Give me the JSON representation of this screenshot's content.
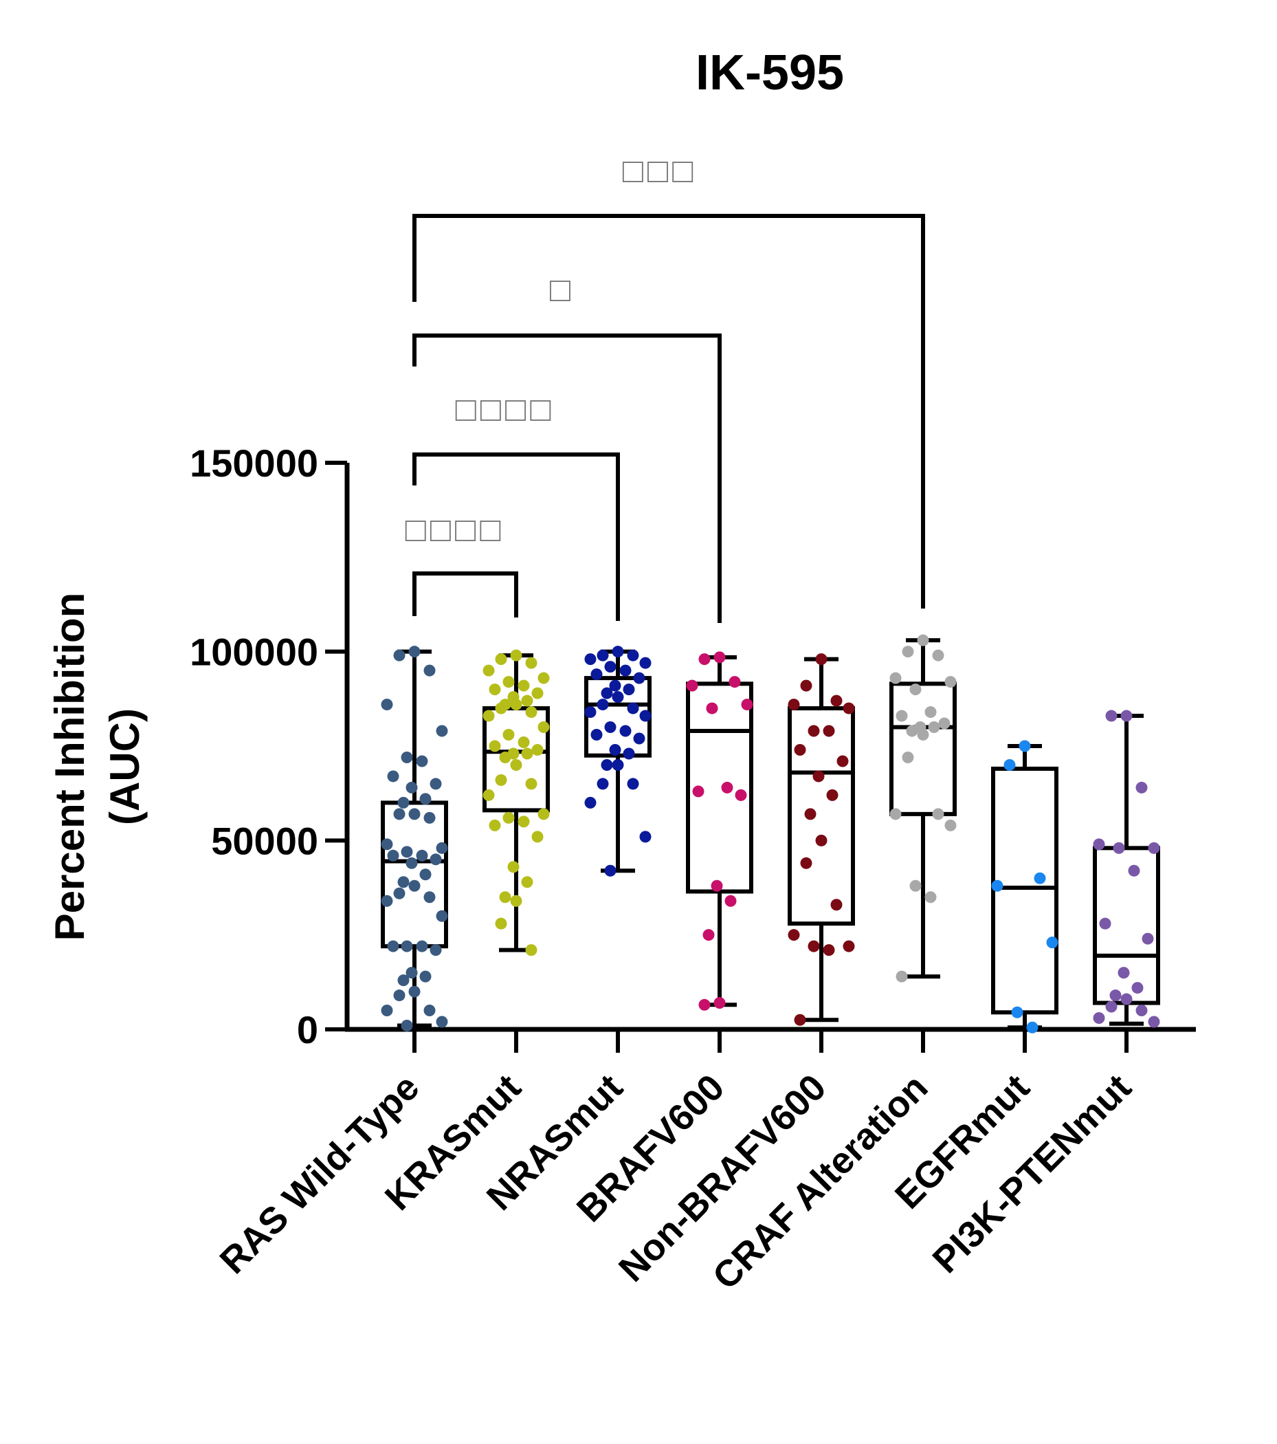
{
  "chart_data": {
    "type": "box-scatter",
    "title": "IK-595",
    "ylabel_lines": [
      "Percent Inhibition",
      "(AUC)"
    ],
    "ylim": [
      0,
      150000
    ],
    "yticks": [
      0,
      50000,
      100000,
      150000
    ],
    "ytick_labels": [
      "0",
      "50000",
      "100000",
      "150000"
    ],
    "categories": [
      "RAS Wild-Type",
      "KRASmut",
      "NRASmut",
      "BRAFV600",
      "Non-BRAFV600",
      "CRAF Alteration",
      "EGFRmut",
      "PI3K-PTENmut"
    ],
    "colors": [
      "#3a5a80",
      "#b5bd1a",
      "#0a1a9a",
      "#c8106a",
      "#7a0a14",
      "#a8a8a8",
      "#1a86f0",
      "#7a58a8"
    ],
    "boxes": [
      {
        "min": 1000,
        "q1": 22000,
        "median": 44500,
        "q3": 60000,
        "max": 100000
      },
      {
        "min": 21000,
        "q1": 58000,
        "median": 73500,
        "q3": 85000,
        "max": 99000
      },
      {
        "min": 42000,
        "q1": 72500,
        "median": 86000,
        "q3": 93000,
        "max": 100000
      },
      {
        "min": 6500,
        "q1": 36500,
        "median": 79000,
        "q3": 91500,
        "max": 98500
      },
      {
        "min": 2500,
        "q1": 28000,
        "median": 68000,
        "q3": 85000,
        "max": 98000
      },
      {
        "min": 14000,
        "q1": 57000,
        "median": 80000,
        "q3": 91500,
        "max": 103000
      },
      {
        "min": 500,
        "q1": 4500,
        "median": 37500,
        "q3": 69000,
        "max": 75000
      },
      {
        "min": 1500,
        "q1": 7000,
        "median": 19500,
        "q3": 48000,
        "max": 83000
      }
    ],
    "points": [
      [
        100000,
        99000,
        95000,
        86000,
        79000,
        72000,
        71000,
        67000,
        65000,
        64000,
        61000,
        60000,
        57000,
        57000,
        56000,
        49000,
        48000,
        47000,
        46000,
        46000,
        45000,
        44000,
        41000,
        39000,
        38000,
        36000,
        35000,
        34000,
        30000,
        22000,
        22000,
        22000,
        21000,
        15000,
        14000,
        13000,
        10000,
        9000,
        5000,
        5000,
        2000,
        1000
      ],
      [
        99000,
        98000,
        97000,
        95000,
        93000,
        92000,
        91000,
        90000,
        89000,
        88000,
        87000,
        86000,
        86000,
        85000,
        84000,
        83000,
        80000,
        78000,
        76000,
        75000,
        74000,
        73000,
        73000,
        72000,
        70000,
        66000,
        65000,
        62000,
        57000,
        56000,
        55000,
        54000,
        51000,
        43000,
        39000,
        35000,
        34000,
        28000,
        21000
      ],
      [
        100000,
        99000,
        99000,
        98000,
        97000,
        96000,
        95000,
        94000,
        93000,
        91000,
        90000,
        89000,
        88000,
        86000,
        85000,
        84000,
        83000,
        80000,
        79000,
        78000,
        77000,
        74000,
        73000,
        70000,
        70000,
        65000,
        65000,
        60000,
        51000,
        42000
      ],
      [
        98500,
        98000,
        92000,
        91000,
        86000,
        85000,
        64000,
        63000,
        62000,
        38000,
        34000,
        25000,
        7000,
        6500
      ],
      [
        98000,
        91000,
        87000,
        86000,
        85000,
        79000,
        79000,
        74000,
        71000,
        67000,
        62000,
        57000,
        50000,
        44000,
        33000,
        25000,
        22000,
        22000,
        21000,
        2500
      ],
      [
        103000,
        100000,
        99000,
        93000,
        92000,
        90000,
        84000,
        83000,
        81000,
        80000,
        80000,
        79000,
        78000,
        72000,
        57000,
        57000,
        54000,
        38000,
        35000,
        14000
      ],
      [
        75000,
        70000,
        40000,
        38000,
        23000,
        4500,
        500
      ],
      [
        83000,
        83000,
        64000,
        49000,
        48000,
        48000,
        42000,
        28000,
        24000,
        15000,
        11000,
        9000,
        8000,
        6000,
        5000,
        3000,
        2000
      ]
    ],
    "significance": [
      {
        "from": 0,
        "to": 1,
        "label": "□□□□"
      },
      {
        "from": 0,
        "to": 2,
        "label": "□□□□"
      },
      {
        "from": 0,
        "to": 3,
        "label": "□"
      },
      {
        "from": 0,
        "to": 5,
        "label": "□□□"
      }
    ],
    "grid": false,
    "legend": "none"
  }
}
